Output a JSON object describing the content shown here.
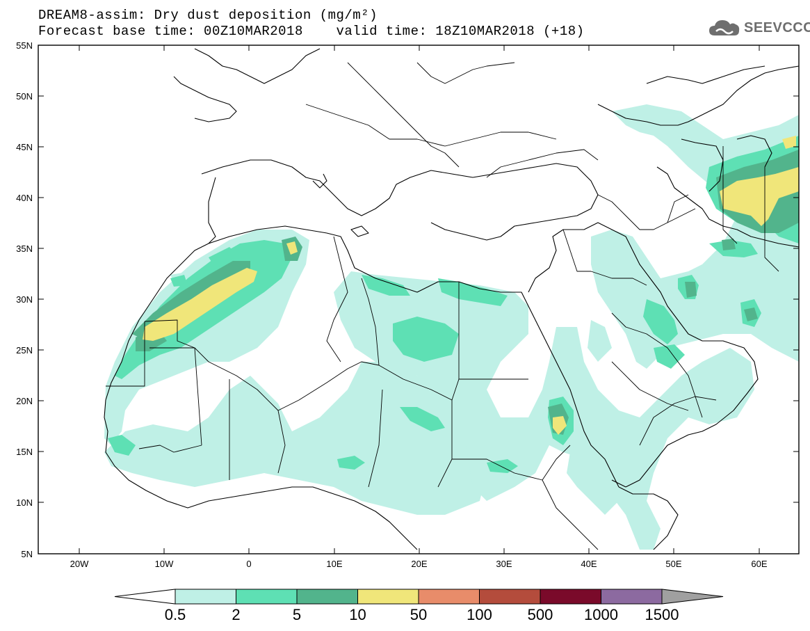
{
  "title": {
    "line1": "DREAM8-assim: Dry dust deposition (mg/m²)",
    "line2": "Forecast base time: 00Z10MAR2018    valid time: 18Z10MAR2018 (+18)"
  },
  "logo": {
    "text": "SEEVCCC",
    "icon": "cloud-icon"
  },
  "axes": {
    "lon_ticks": [
      "20W",
      "10W",
      "0",
      "10E",
      "20E",
      "30E",
      "40E",
      "50E",
      "60E"
    ],
    "lat_ticks": [
      "55N",
      "50N",
      "45N",
      "40N",
      "35N",
      "30N",
      "25N",
      "20N",
      "15N",
      "10N",
      "5N"
    ]
  },
  "legend": {
    "labels": [
      "0.5",
      "2",
      "5",
      "10",
      "50",
      "100",
      "500",
      "1000",
      "1500"
    ],
    "colors": [
      "#bff0e6",
      "#5ee0b4",
      "#52b48c",
      "#f0e67a",
      "#e88c6a",
      "#b44c3c",
      "#7a0a2a",
      "#8c6aa0"
    ],
    "under_color": "#ffffff",
    "over_color": "#a0a0a0"
  }
}
